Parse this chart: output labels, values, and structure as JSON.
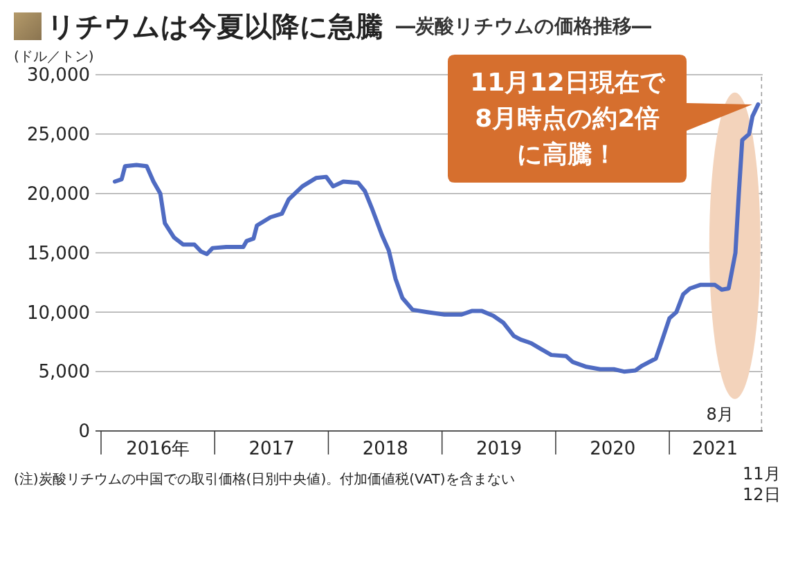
{
  "chart_data": {
    "type": "line",
    "title": "リチウムは今夏以降に急騰",
    "subtitle": "―炭酸リチウムの価格推移―",
    "ylabel": "(ドル／トン)",
    "x": [
      2016.12,
      2016.18,
      2016.21,
      2016.31,
      2016.4,
      2016.46,
      2016.52,
      2016.56,
      2016.64,
      2016.72,
      2016.82,
      2016.88,
      2016.93,
      2016.98,
      2017.1,
      2017.25,
      2017.28,
      2017.34,
      2017.37,
      2017.49,
      2017.59,
      2017.65,
      2017.77,
      2017.89,
      2017.98,
      2018.04,
      2018.13,
      2018.26,
      2018.32,
      2018.38,
      2018.47,
      2018.53,
      2018.59,
      2018.65,
      2018.74,
      2018.87,
      2019.02,
      2019.17,
      2019.26,
      2019.35,
      2019.45,
      2019.54,
      2019.63,
      2019.69,
      2019.78,
      2019.87,
      2019.96,
      2020.09,
      2020.15,
      2020.27,
      2020.39,
      2020.51,
      2020.6,
      2020.7,
      2020.76,
      2020.88,
      2020.93,
      2021.0,
      2021.06,
      2021.12,
      2021.18,
      2021.27,
      2021.4,
      2021.46,
      2021.52,
      2021.55,
      2021.58,
      2021.61,
      2021.64,
      2021.7,
      2021.73,
      2021.78
    ],
    "series": [
      {
        "color": "#4f6bc2",
        "values": [
          21000,
          21200,
          22300,
          22400,
          22300,
          21000,
          20000,
          17500,
          16300,
          15700,
          15700,
          15100,
          14900,
          15400,
          15500,
          15500,
          16000,
          16200,
          17300,
          18000,
          18300,
          19500,
          20600,
          21300,
          21400,
          20600,
          21000,
          20900,
          20200,
          18800,
          16500,
          15200,
          12800,
          11200,
          10200,
          10000,
          9800,
          9800,
          10100,
          10100,
          9700,
          9100,
          8000,
          7700,
          7400,
          6900,
          6400,
          6300,
          5800,
          5400,
          5200,
          5200,
          5000,
          5100,
          5500,
          6100,
          7500,
          9500,
          10000,
          11500,
          12000,
          12300,
          12300,
          11900,
          12000,
          13500,
          15000,
          20000,
          24500,
          25000,
          26500,
          27500
        ]
      }
    ],
    "xlim": [
      2015.95,
      2021.82
    ],
    "xticks": [
      {
        "value": 2016.5,
        "label": "2016年"
      },
      {
        "value": 2017.5,
        "label": "2017"
      },
      {
        "value": 2018.5,
        "label": "2018"
      },
      {
        "value": 2019.5,
        "label": "2019"
      },
      {
        "value": 2020.5,
        "label": "2020"
      },
      {
        "value": 2021.4,
        "label": "2021"
      }
    ],
    "ylim": [
      0,
      30000
    ],
    "yticks": [
      0,
      {
        "value": 5000,
        "label": "5,000"
      },
      {
        "value": 10000,
        "label": "10,000"
      },
      {
        "value": 15000,
        "label": "15,000"
      },
      {
        "value": 20000,
        "label": "20,000"
      },
      {
        "value": 25000,
        "label": "25,000"
      },
      {
        "value": 30000,
        "label": "30,000"
      }
    ],
    "grid": "y",
    "legend": false,
    "marker": "none",
    "line_style": "solid",
    "ref_lines": [
      {
        "axis": "x",
        "value": 2021.81,
        "label": "11月\n12日",
        "color": "#999999",
        "line_style": "dashed"
      }
    ],
    "bands": [
      {
        "axis": "x",
        "from": 2021.35,
        "to": 2021.8,
        "color": "#f3d3bb"
      }
    ],
    "annotations": [
      "11月12日現在で8月時点の約2倍に高騰！",
      "8月",
      "(注)炭酸リチウムの中国での取引価格(日別中央値)。付加価値税(VAT)を含まない"
    ]
  }
}
